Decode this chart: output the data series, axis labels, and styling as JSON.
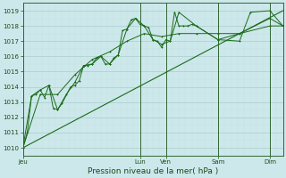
{
  "background_color": "#cce8ea",
  "grid_color_major": "#aacccc",
  "grid_color_minor": "#c8e0e2",
  "line_color": "#1a6b1a",
  "vline_color": "#336633",
  "ylim": [
    1009.5,
    1019.5
  ],
  "yticks": [
    1010,
    1011,
    1012,
    1013,
    1014,
    1015,
    1016,
    1017,
    1018,
    1019
  ],
  "xlim": [
    0,
    240
  ],
  "day_labels": [
    "Jeu",
    "Lun",
    "Ven",
    "Sam",
    "Dim"
  ],
  "day_positions": [
    0,
    108,
    132,
    180,
    228
  ],
  "xlabel": "Pression niveau de la mer( hPa )",
  "series1": [
    [
      0,
      1010.0
    ],
    [
      4,
      1011.0
    ],
    [
      8,
      1013.4
    ],
    [
      12,
      1013.5
    ],
    [
      16,
      1013.8
    ],
    [
      20,
      1013.3
    ],
    [
      24,
      1014.1
    ],
    [
      28,
      1012.6
    ],
    [
      32,
      1012.5
    ],
    [
      36,
      1012.9
    ],
    [
      44,
      1014.0
    ],
    [
      48,
      1014.1
    ],
    [
      52,
      1014.4
    ],
    [
      56,
      1015.4
    ],
    [
      60,
      1015.4
    ],
    [
      64,
      1015.5
    ],
    [
      68,
      1015.9
    ],
    [
      72,
      1016.0
    ],
    [
      76,
      1015.5
    ],
    [
      80,
      1015.5
    ],
    [
      84,
      1015.9
    ],
    [
      88,
      1016.1
    ],
    [
      92,
      1017.7
    ],
    [
      96,
      1017.8
    ],
    [
      100,
      1018.4
    ],
    [
      104,
      1018.5
    ],
    [
      108,
      1018.1
    ],
    [
      112,
      1018.0
    ],
    [
      116,
      1017.9
    ],
    [
      120,
      1017.1
    ],
    [
      124,
      1017.0
    ],
    [
      128,
      1016.6
    ],
    [
      132,
      1017.1
    ],
    [
      136,
      1017.0
    ],
    [
      140,
      1018.9
    ],
    [
      144,
      1018.0
    ],
    [
      148,
      1018.0
    ],
    [
      152,
      1018.0
    ],
    [
      156,
      1018.1
    ],
    [
      160,
      1018.0
    ],
    [
      180,
      1017.1
    ],
    [
      200,
      1017.0
    ],
    [
      210,
      1018.9
    ],
    [
      228,
      1019.0
    ],
    [
      240,
      1018.0
    ]
  ],
  "series2": [
    [
      0,
      1010.0
    ],
    [
      8,
      1013.4
    ],
    [
      16,
      1013.8
    ],
    [
      24,
      1014.1
    ],
    [
      32,
      1012.5
    ],
    [
      40,
      1013.5
    ],
    [
      48,
      1014.3
    ],
    [
      56,
      1015.4
    ],
    [
      64,
      1015.5
    ],
    [
      72,
      1016.0
    ],
    [
      80,
      1015.5
    ],
    [
      88,
      1016.1
    ],
    [
      96,
      1017.8
    ],
    [
      104,
      1018.5
    ],
    [
      112,
      1018.0
    ],
    [
      120,
      1017.1
    ],
    [
      128,
      1016.8
    ],
    [
      136,
      1017.0
    ],
    [
      144,
      1018.9
    ],
    [
      160,
      1018.0
    ],
    [
      180,
      1017.1
    ],
    [
      200,
      1017.5
    ],
    [
      228,
      1018.5
    ],
    [
      240,
      1018.0
    ]
  ],
  "series3": [
    [
      0,
      1010.0
    ],
    [
      16,
      1013.5
    ],
    [
      32,
      1013.5
    ],
    [
      48,
      1014.8
    ],
    [
      64,
      1015.8
    ],
    [
      80,
      1016.3
    ],
    [
      96,
      1017.0
    ],
    [
      112,
      1017.5
    ],
    [
      128,
      1017.3
    ],
    [
      144,
      1017.5
    ],
    [
      160,
      1017.5
    ],
    [
      180,
      1017.5
    ],
    [
      200,
      1017.5
    ],
    [
      228,
      1018.0
    ],
    [
      240,
      1018.0
    ]
  ],
  "series4": [
    [
      0,
      1010.0
    ],
    [
      240,
      1019.0
    ]
  ]
}
